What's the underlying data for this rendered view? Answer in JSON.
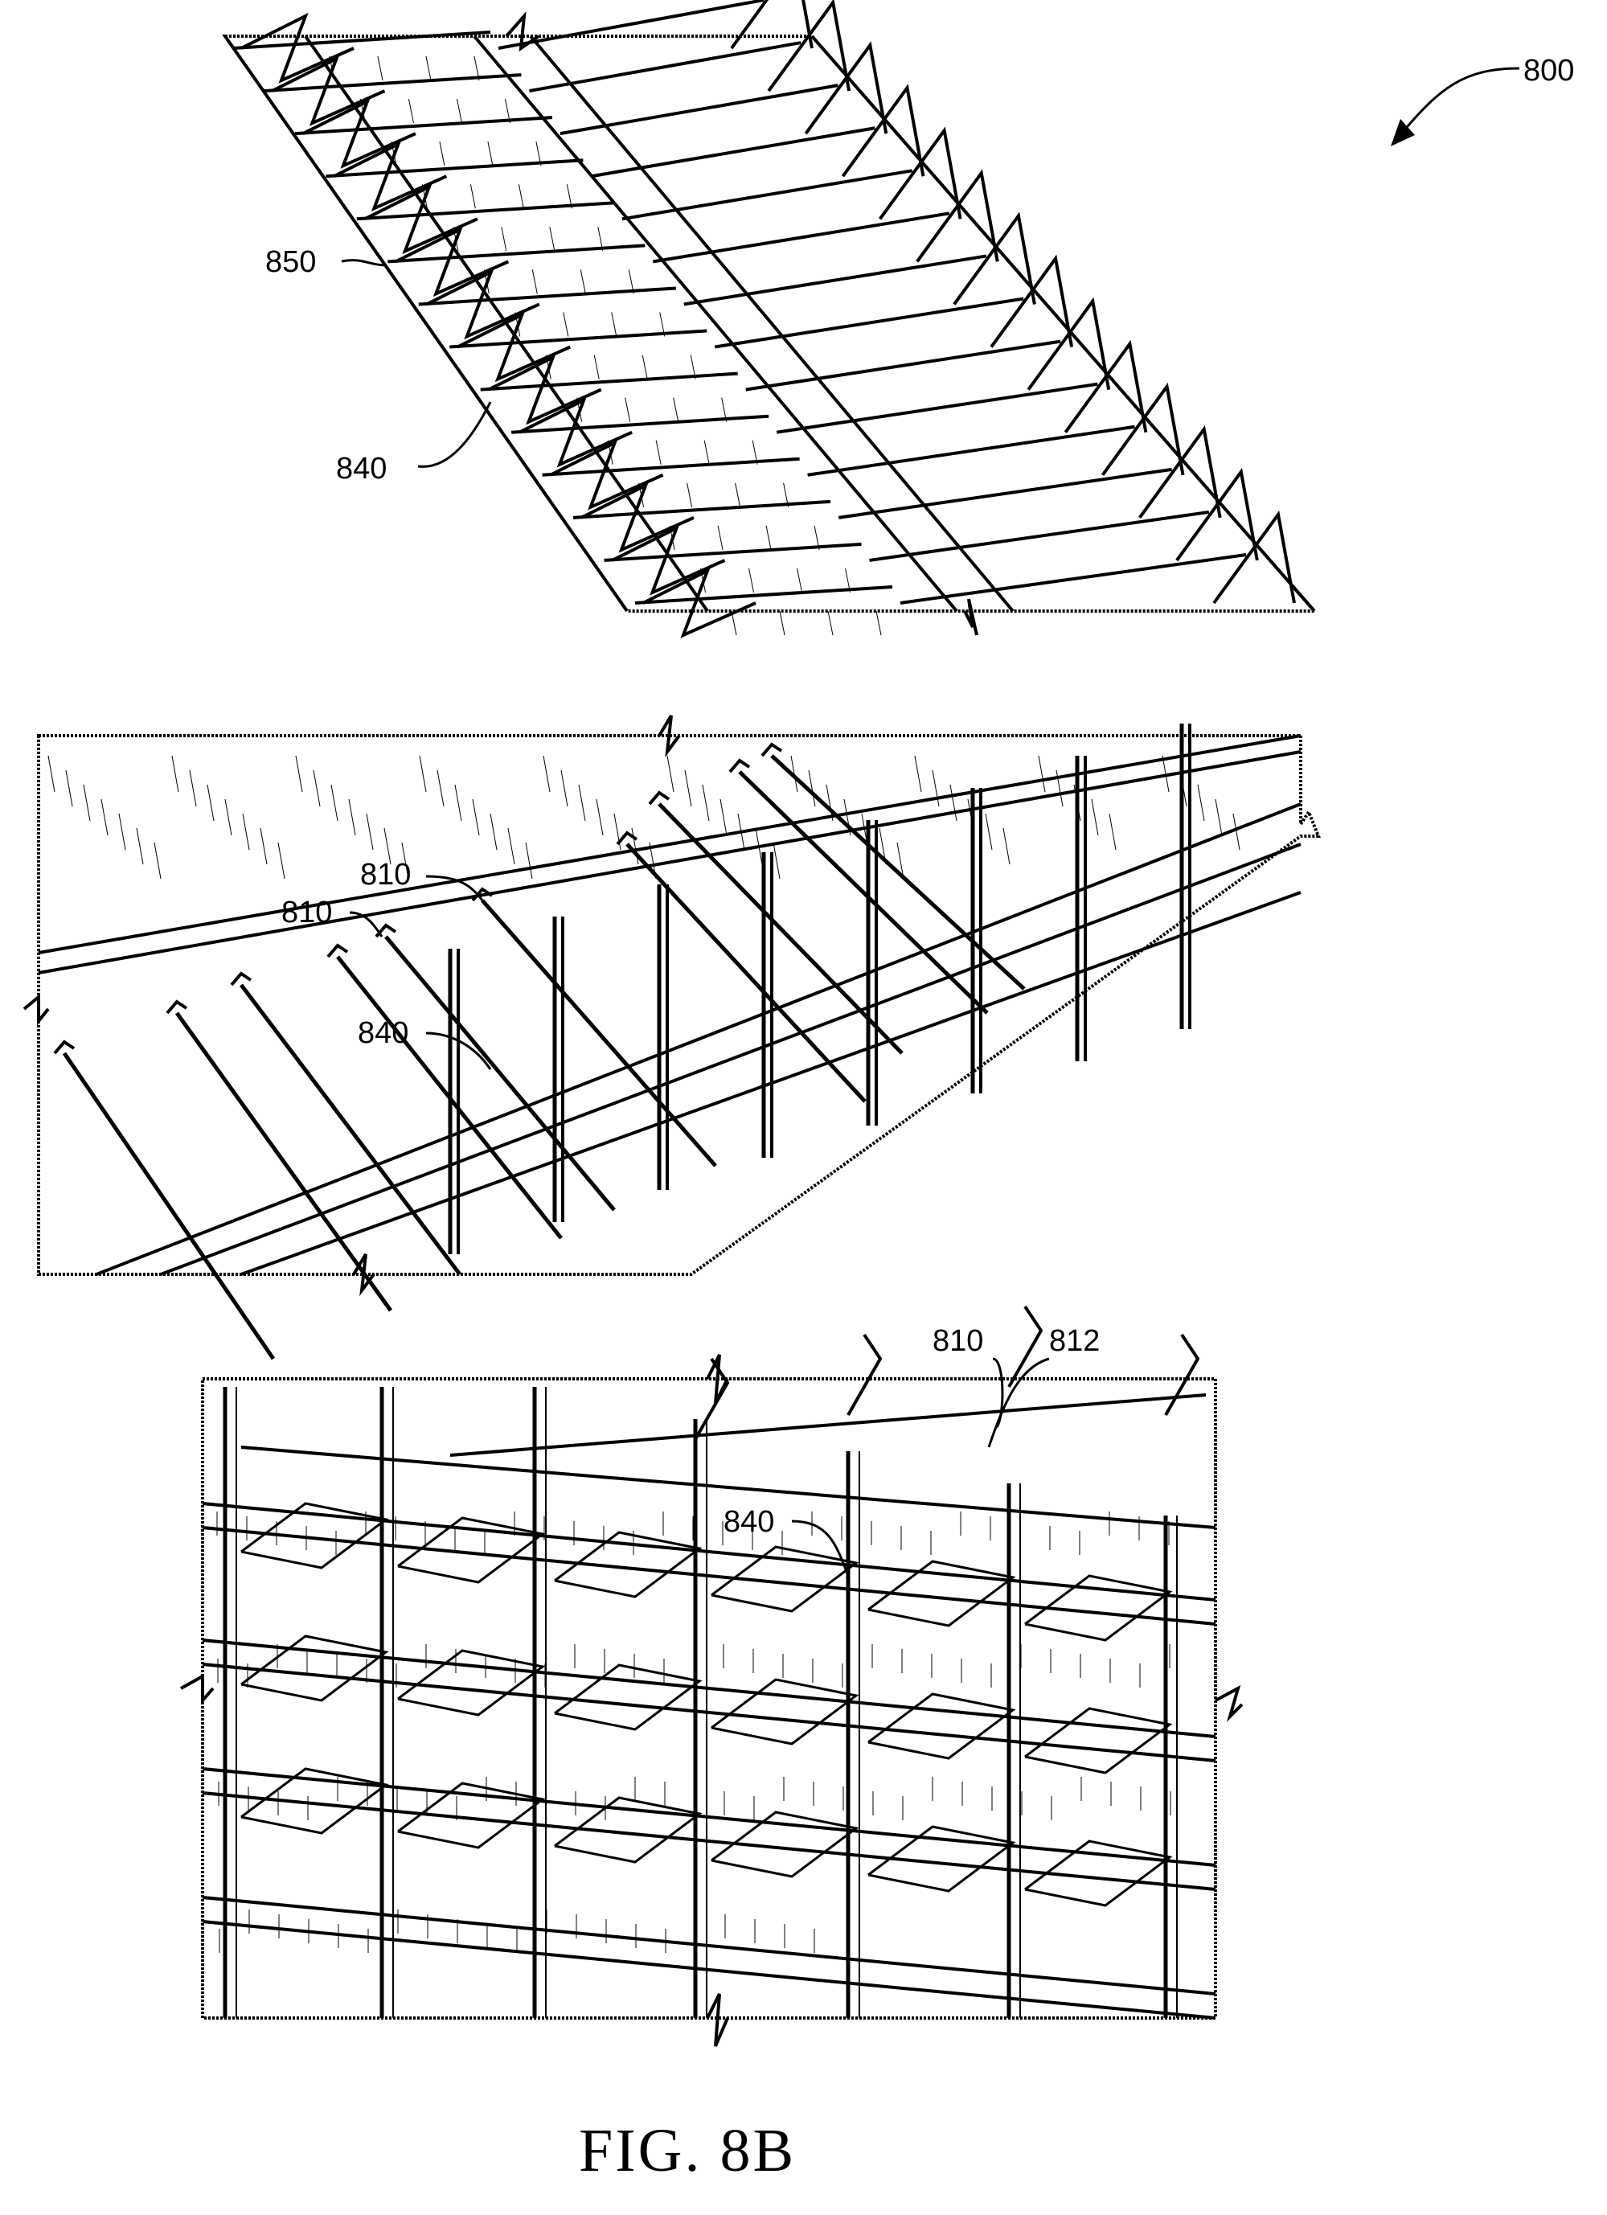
{
  "figure": {
    "caption": "FIG. 8B",
    "reference_numeral": "800",
    "panels": [
      {
        "id": "top",
        "labels": [
          "850",
          "840"
        ]
      },
      {
        "id": "middle",
        "labels": [
          "810",
          "810",
          "840"
        ]
      },
      {
        "id": "bottom",
        "labels": [
          "810",
          "812",
          "840"
        ]
      }
    ]
  }
}
